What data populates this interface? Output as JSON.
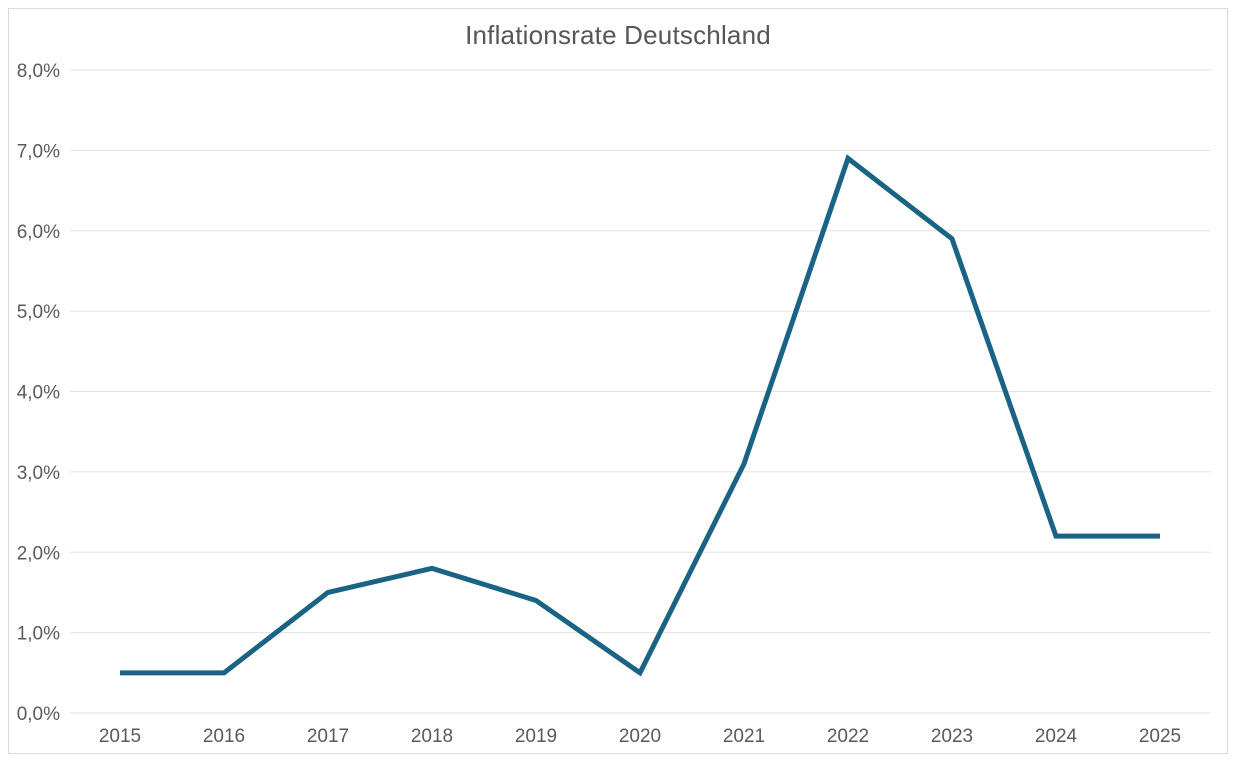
{
  "chart_data": {
    "type": "line",
    "title": "Inflationsrate Deutschland",
    "categories": [
      "2015",
      "2016",
      "2017",
      "2018",
      "2019",
      "2020",
      "2021",
      "2022",
      "2023",
      "2024",
      "2025"
    ],
    "series": [
      {
        "name": "Inflationsrate Deutschland",
        "values": [
          0.5,
          0.5,
          1.5,
          1.8,
          1.4,
          0.5,
          3.1,
          6.9,
          5.9,
          2.2,
          2.2
        ]
      }
    ],
    "xlabel": "",
    "ylabel": "",
    "ylim": [
      0,
      8
    ],
    "y_tick_step": 1,
    "y_tick_labels": [
      "0,0%",
      "1,0%",
      "2,0%",
      "3,0%",
      "4,0%",
      "5,0%",
      "6,0%",
      "7,0%",
      "8,0%"
    ],
    "grid": true,
    "legend_position": "none",
    "colors": {
      "line": "#1a6384",
      "grid": "#e2e2e2",
      "axis_text": "#5a5a5c",
      "title_text": "#55565a",
      "border": "#d9d9d9",
      "background": "#ffffff"
    }
  }
}
